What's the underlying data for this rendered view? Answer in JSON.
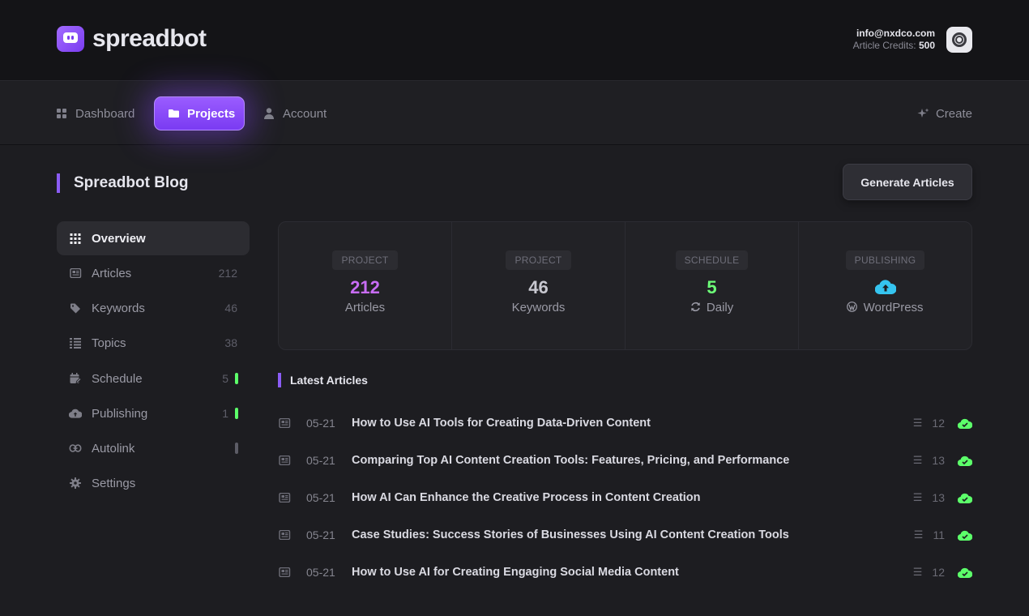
{
  "header": {
    "brand": "spreadbot",
    "user_email": "info@nxdco.com",
    "credits_label": "Article Credits:",
    "credits_value": "500"
  },
  "nav": {
    "dashboard": "Dashboard",
    "projects": "Projects",
    "account": "Account",
    "create": "Create"
  },
  "page": {
    "title": "Spreadbot Blog",
    "generate_button": "Generate Articles"
  },
  "sidebar": {
    "items": [
      {
        "label": "Overview",
        "count": ""
      },
      {
        "label": "Articles",
        "count": "212"
      },
      {
        "label": "Keywords",
        "count": "46"
      },
      {
        "label": "Topics",
        "count": "38"
      },
      {
        "label": "Schedule",
        "count": "5"
      },
      {
        "label": "Publishing",
        "count": "1"
      },
      {
        "label": "Autolink",
        "count": ""
      },
      {
        "label": "Settings",
        "count": ""
      }
    ]
  },
  "stats": [
    {
      "tag": "PROJECT",
      "value": "212",
      "label": "Articles"
    },
    {
      "tag": "PROJECT",
      "value": "46",
      "label": "Keywords"
    },
    {
      "tag": "SCHEDULE",
      "value": "5",
      "label": "Daily"
    },
    {
      "tag": "PUBLISHING",
      "value": "",
      "label": "WordPress"
    }
  ],
  "latest": {
    "title": "Latest Articles",
    "rows": [
      {
        "date": "05-21",
        "title": "How to Use AI Tools for Creating Data-Driven Content",
        "keywords": "12"
      },
      {
        "date": "05-21",
        "title": "Comparing Top AI Content Creation Tools: Features, Pricing, and Performance",
        "keywords": "13"
      },
      {
        "date": "05-21",
        "title": "How AI Can Enhance the Creative Process in Content Creation",
        "keywords": "13"
      },
      {
        "date": "05-21",
        "title": "Case Studies: Success Stories of Businesses Using AI Content Creation Tools",
        "keywords": "11"
      },
      {
        "date": "05-21",
        "title": "How to Use AI for Creating Engaging Social Media Content",
        "keywords": "12"
      }
    ]
  },
  "colors": {
    "accent": "#8b5cf6",
    "articles_value": "#c86cf5",
    "schedule_value": "#6dff78",
    "publishing_icon": "#35c4ef",
    "published_status": "#5cff6a"
  },
  "icons": {
    "logo": "chat-bot-icon",
    "publishing": "cloud-upload-icon",
    "row_status": "cloud-check-icon"
  }
}
